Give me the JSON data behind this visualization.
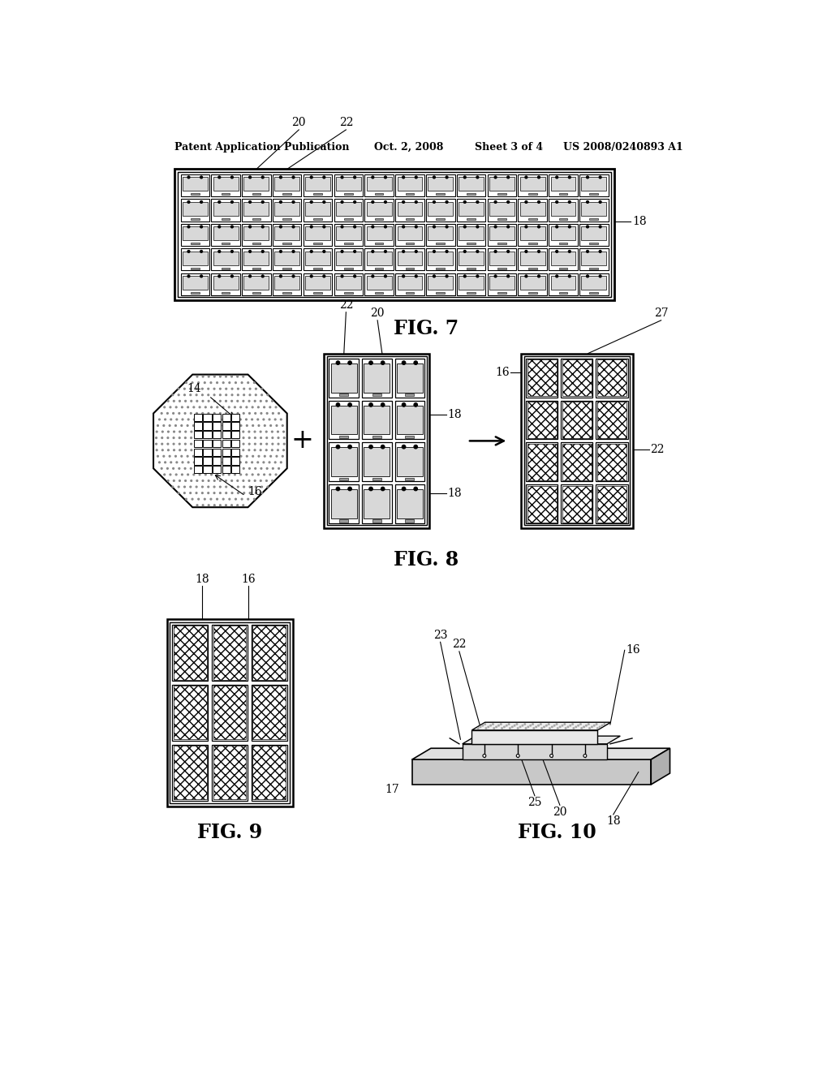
{
  "bg_color": "#ffffff",
  "header_left": "Patent Application Publication",
  "header_mid": "Oct. 2, 2008   Sheet 3 of 4",
  "header_right": "US 2008/0240893 A1",
  "fig7_label": "FIG. 7",
  "fig8_label": "FIG. 8",
  "fig9_label": "FIG. 9",
  "fig10_label": "FIG. 10",
  "label_color": "#000000",
  "line_color": "#000000"
}
